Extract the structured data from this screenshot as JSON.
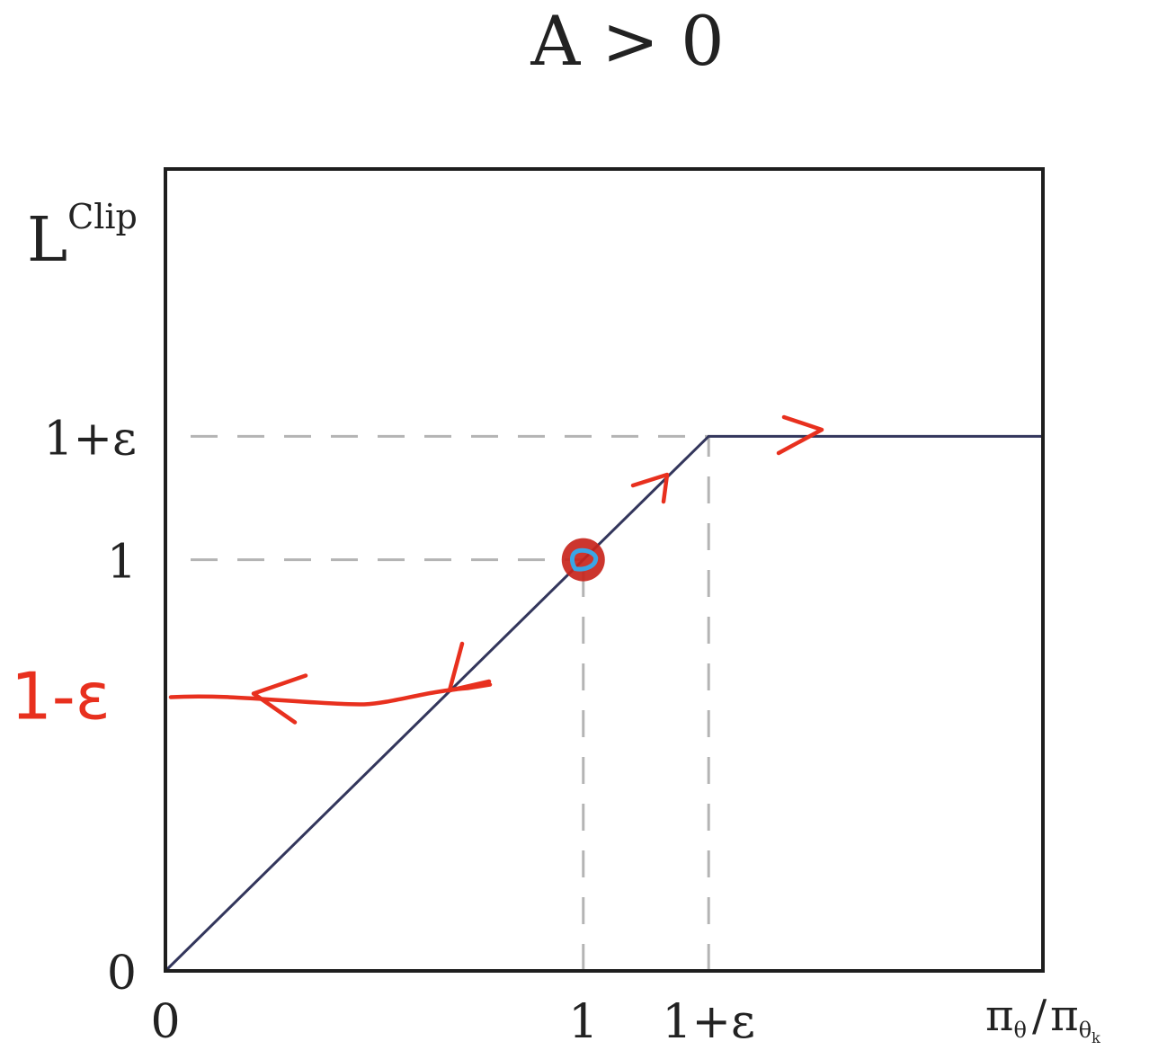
{
  "chart_data": {
    "type": "line",
    "title": "A > 0",
    "ylabel": {
      "main": "L",
      "superscript": "Clip"
    },
    "xlabel": {
      "num": "π",
      "num_sub": "θ",
      "den": "π",
      "den_sub": "θ",
      "den_sub_sub": "k"
    },
    "epsilon": 0.3,
    "xlim": [
      0,
      2.1
    ],
    "ylim": [
      0,
      1.95
    ],
    "x_ticks": [
      {
        "value": 0,
        "label": "0"
      },
      {
        "value": 1,
        "label": "1"
      },
      {
        "value": 1.3,
        "label": "1+ε"
      }
    ],
    "y_ticks": [
      {
        "value": 0,
        "label": "0"
      },
      {
        "value": 1,
        "label": "1"
      },
      {
        "value": 1.3,
        "label": "1+ε"
      }
    ],
    "series": [
      {
        "x": [
          0,
          1.3,
          2.1
        ],
        "y": [
          0,
          1.3,
          1.3
        ]
      }
    ],
    "reference_lines": [
      {
        "orientation": "h",
        "y": 1.3,
        "x_from": 0,
        "x_to": 1.3
      },
      {
        "orientation": "h",
        "y": 1,
        "x_from": 0,
        "x_to": 1
      },
      {
        "orientation": "v",
        "x": 1,
        "y_from": 0,
        "y_to": 1
      },
      {
        "orientation": "v",
        "x": 1.3,
        "y_from": 0,
        "y_to": 1.3
      }
    ],
    "highlight_point": {
      "x": 1,
      "y": 1
    },
    "annotations": [
      {
        "kind": "handwritten-label",
        "text": "1-ε",
        "y": 0.67
      }
    ],
    "colors": {
      "line": "#33365c",
      "frame": "#1e1e1e",
      "grid_dash": "#b4b4b4",
      "annotation": "#e8301e",
      "marker_fill": "#c8251c",
      "marker_ring": "#3aa6e6"
    }
  }
}
